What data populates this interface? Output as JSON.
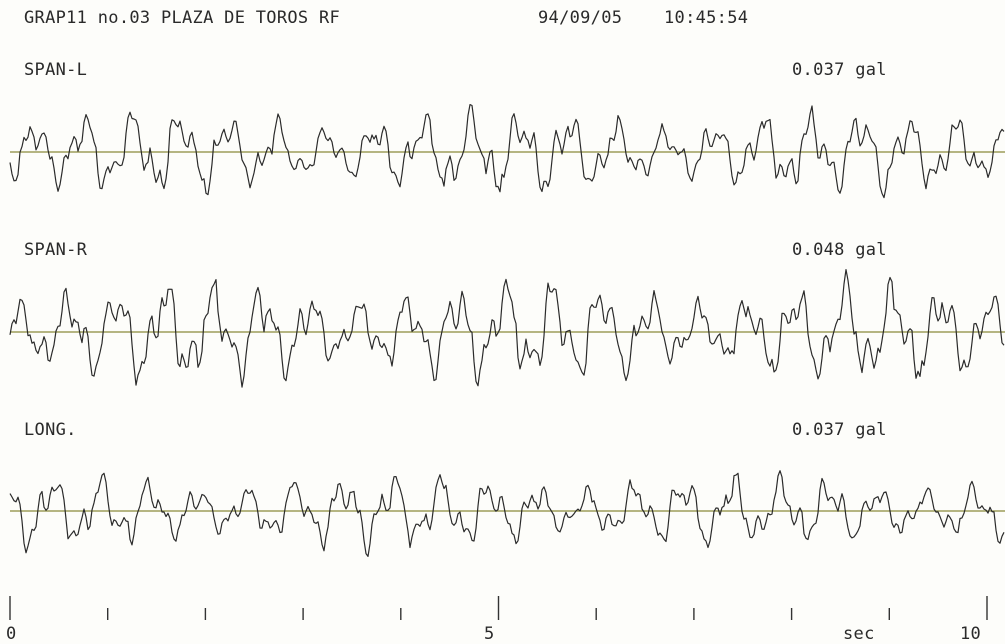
{
  "header": {
    "station": "GRAP11 no.03 PLAZA DE TOROS RF",
    "date": "94/09/05",
    "time": "10:45:54"
  },
  "chart_data": {
    "type": "line",
    "xlabel": "sec",
    "xlim": [
      0,
      10
    ],
    "x_tick_labels": [
      "0",
      "5",
      "10"
    ],
    "series": [
      {
        "name": "SPAN-L",
        "peak": "0.037 gal"
      },
      {
        "name": "SPAN-R",
        "peak": "0.048 gal"
      },
      {
        "name": "LONG.",
        "peak": "0.037 gal"
      }
    ],
    "colors": {
      "trace": "#2b2b2b",
      "baseline": "#8a8a3a"
    }
  }
}
